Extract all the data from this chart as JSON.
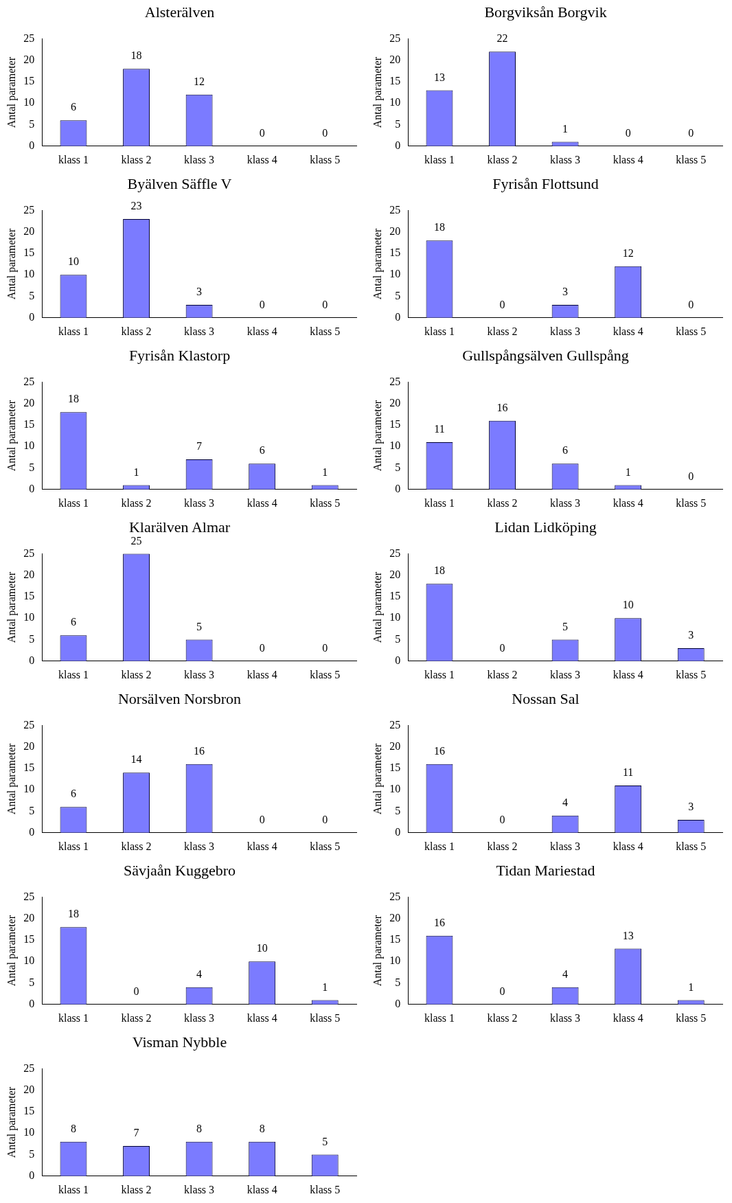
{
  "chart_data": [
    {
      "type": "bar",
      "title": "Alsterälven",
      "ylabel": "Antal parameter",
      "categories": [
        "klass 1",
        "klass 2",
        "klass 3",
        "klass 4",
        "klass 5"
      ],
      "values": [
        6,
        18,
        12,
        0,
        0
      ],
      "color": "#7b7bff",
      "ylim": [
        0,
        25
      ],
      "yticks": [
        0,
        5,
        10,
        15,
        20,
        25
      ],
      "grid": false,
      "legend": false,
      "data_labels": true
    },
    {
      "type": "bar",
      "title": "Borgviksån Borgvik",
      "ylabel": "Antal parameter",
      "categories": [
        "klass 1",
        "klass 2",
        "klass 3",
        "klass 4",
        "klass 5"
      ],
      "values": [
        13,
        22,
        1,
        0,
        0
      ],
      "color": "#7b7bff",
      "ylim": [
        0,
        25
      ],
      "yticks": [
        0,
        5,
        10,
        15,
        20,
        25
      ],
      "grid": false,
      "legend": false,
      "data_labels": true
    },
    {
      "type": "bar",
      "title": "Byälven Säffle V",
      "ylabel": "Antal parameter",
      "categories": [
        "klass 1",
        "klass 2",
        "klass 3",
        "klass 4",
        "klass 5"
      ],
      "values": [
        10,
        23,
        3,
        0,
        0
      ],
      "color": "#7b7bff",
      "ylim": [
        0,
        25
      ],
      "yticks": [
        0,
        5,
        10,
        15,
        20,
        25
      ],
      "grid": false,
      "legend": false,
      "data_labels": true
    },
    {
      "type": "bar",
      "title": "Fyrisån Flottsund",
      "ylabel": "Antal parameter",
      "categories": [
        "klass 1",
        "klass 2",
        "klass 3",
        "klass 4",
        "klass 5"
      ],
      "values": [
        18,
        0,
        3,
        12,
        0
      ],
      "color": "#7b7bff",
      "ylim": [
        0,
        25
      ],
      "yticks": [
        0,
        5,
        10,
        15,
        20,
        25
      ],
      "grid": false,
      "legend": false,
      "data_labels": true
    },
    {
      "type": "bar",
      "title": "Fyrisån Klastorp",
      "ylabel": "Antal parameter",
      "categories": [
        "klass 1",
        "klass 2",
        "klass 3",
        "klass 4",
        "klass 5"
      ],
      "values": [
        18,
        1,
        7,
        6,
        1
      ],
      "color": "#7b7bff",
      "ylim": [
        0,
        25
      ],
      "yticks": [
        0,
        5,
        10,
        15,
        20,
        25
      ],
      "grid": false,
      "legend": false,
      "data_labels": true
    },
    {
      "type": "bar",
      "title": "Gullspångsälven Gullspång",
      "ylabel": "Antal parameter",
      "categories": [
        "klass 1",
        "klass 2",
        "klass 3",
        "klass 4",
        "klass 5"
      ],
      "values": [
        11,
        16,
        6,
        1,
        0
      ],
      "color": "#7b7bff",
      "ylim": [
        0,
        25
      ],
      "yticks": [
        0,
        5,
        10,
        15,
        20,
        25
      ],
      "grid": false,
      "legend": false,
      "data_labels": true
    },
    {
      "type": "bar",
      "title": "Klarälven Almar",
      "ylabel": "Antal parameter",
      "categories": [
        "klass 1",
        "klass 2",
        "klass 3",
        "klass 4",
        "klass 5"
      ],
      "values": [
        6,
        25,
        5,
        0,
        0
      ],
      "color": "#7b7bff",
      "ylim": [
        0,
        25
      ],
      "yticks": [
        0,
        5,
        10,
        15,
        20,
        25
      ],
      "grid": false,
      "legend": false,
      "data_labels": true
    },
    {
      "type": "bar",
      "title": "Lidan Lidköping",
      "ylabel": "Antal parameter",
      "categories": [
        "klass 1",
        "klass 2",
        "klass 3",
        "klass 4",
        "klass 5"
      ],
      "values": [
        18,
        0,
        5,
        10,
        3
      ],
      "color": "#7b7bff",
      "ylim": [
        0,
        25
      ],
      "yticks": [
        0,
        5,
        10,
        15,
        20,
        25
      ],
      "grid": false,
      "legend": false,
      "data_labels": true
    },
    {
      "type": "bar",
      "title": "Norsälven Norsbron",
      "ylabel": "Antal parameter",
      "categories": [
        "klass 1",
        "klass 2",
        "klass 3",
        "klass 4",
        "klass 5"
      ],
      "values": [
        6,
        14,
        16,
        0,
        0
      ],
      "color": "#7b7bff",
      "ylim": [
        0,
        25
      ],
      "yticks": [
        0,
        5,
        10,
        15,
        20,
        25
      ],
      "grid": false,
      "legend": false,
      "data_labels": true
    },
    {
      "type": "bar",
      "title": "Nossan Sal",
      "ylabel": "Antal parameter",
      "categories": [
        "klass 1",
        "klass 2",
        "klass 3",
        "klass 4",
        "klass 5"
      ],
      "values": [
        16,
        0,
        4,
        11,
        3
      ],
      "color": "#7b7bff",
      "ylim": [
        0,
        25
      ],
      "yticks": [
        0,
        5,
        10,
        15,
        20,
        25
      ],
      "grid": false,
      "legend": false,
      "data_labels": true
    },
    {
      "type": "bar",
      "title": "Sävjaån Kuggebro",
      "ylabel": "Antal parameter",
      "categories": [
        "klass 1",
        "klass 2",
        "klass 3",
        "klass 4",
        "klass 5"
      ],
      "values": [
        18,
        0,
        4,
        10,
        1
      ],
      "color": "#7b7bff",
      "ylim": [
        0,
        25
      ],
      "yticks": [
        0,
        5,
        10,
        15,
        20,
        25
      ],
      "grid": false,
      "legend": false,
      "data_labels": true
    },
    {
      "type": "bar",
      "title": "Tidan Mariestad",
      "ylabel": "Antal parameter",
      "categories": [
        "klass 1",
        "klass 2",
        "klass 3",
        "klass 4",
        "klass 5"
      ],
      "values": [
        16,
        0,
        4,
        13,
        1
      ],
      "color": "#7b7bff",
      "ylim": [
        0,
        25
      ],
      "yticks": [
        0,
        5,
        10,
        15,
        20,
        25
      ],
      "grid": false,
      "legend": false,
      "data_labels": true
    },
    {
      "type": "bar",
      "title": "Visman Nybble",
      "ylabel": "Antal parameter",
      "categories": [
        "klass 1",
        "klass 2",
        "klass 3",
        "klass 4",
        "klass 5"
      ],
      "values": [
        8,
        7,
        8,
        8,
        5
      ],
      "color": "#7b7bff",
      "ylim": [
        0,
        25
      ],
      "yticks": [
        0,
        5,
        10,
        15,
        20,
        25
      ],
      "grid": false,
      "legend": false,
      "data_labels": true
    }
  ]
}
